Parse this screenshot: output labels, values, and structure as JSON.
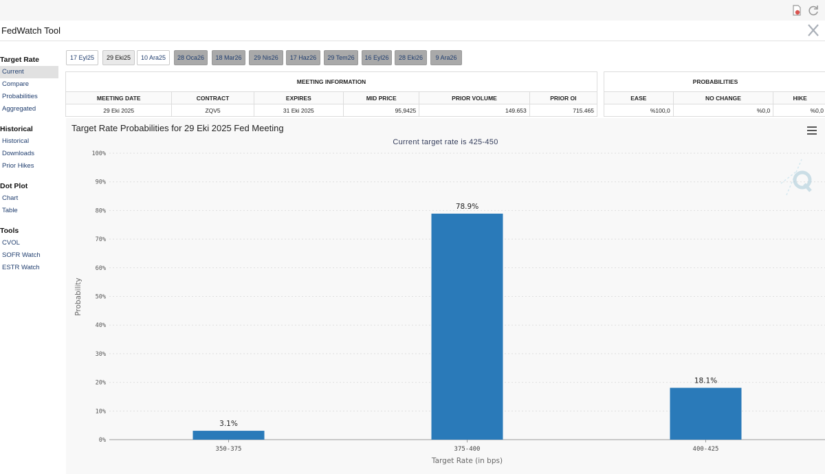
{
  "app": {
    "title": "FedWatch Tool"
  },
  "sidebar": {
    "sections": [
      {
        "heading": "Target Rate",
        "items": [
          "Current",
          "Compare",
          "Probabilities",
          "Aggregated"
        ]
      },
      {
        "heading": "Historical",
        "items": [
          "Historical",
          "Downloads",
          "Prior Hikes"
        ]
      },
      {
        "heading": "Dot Plot",
        "items": [
          "Chart",
          "Table"
        ]
      },
      {
        "heading": "Tools",
        "items": [
          "CVOL",
          "SOFR Watch",
          "ESTR Watch"
        ]
      }
    ]
  },
  "tabs": [
    {
      "label": "17 Eyl25",
      "style": "light"
    },
    {
      "label": "29 Eki25",
      "style": "sel"
    },
    {
      "label": "10 Ara25",
      "style": "light"
    },
    {
      "label": "28 Oca26",
      "style": "dark"
    },
    {
      "label": "18 Mar26",
      "style": "dark"
    },
    {
      "label": "29 Nis26",
      "style": "dark"
    },
    {
      "label": "17 Haz26",
      "style": "dark"
    },
    {
      "label": "29 Tem26",
      "style": "dark"
    },
    {
      "label": "16 Eyl26",
      "style": "dark"
    },
    {
      "label": "28 Eki26",
      "style": "dark"
    },
    {
      "label": "9 Ara26",
      "style": "dark"
    }
  ],
  "meeting": {
    "caption": "MEETING INFORMATION",
    "headers": [
      "MEETING DATE",
      "CONTRACT",
      "EXPIRES",
      "MID PRICE",
      "PRIOR VOLUME",
      "PRIOR OI"
    ],
    "row": [
      "29 Eki 2025",
      "ZQV5",
      "31 Eki 2025",
      "95,9425",
      "149.653",
      "715.465"
    ]
  },
  "probabilities": {
    "caption": "PROBABILITIES",
    "headers": [
      "EASE",
      "NO CHANGE",
      "HIKE"
    ],
    "row": [
      "%100,0",
      "%0,0",
      "%0,0"
    ]
  },
  "chart_data": {
    "type": "bar",
    "title": "Target Rate Probabilities for 29 Eki 2025 Fed Meeting",
    "subtitle": "Current target rate is 425-450",
    "categories": [
      "350-375",
      "375-400",
      "400-425"
    ],
    "values": [
      3.1,
      78.9,
      18.1
    ],
    "data_labels": [
      "3.1%",
      "78.9%",
      "18.1%"
    ],
    "xlabel": "Target Rate (in bps)",
    "ylabel": "Probability",
    "ylim": [
      0,
      100
    ],
    "yticks": [
      "0%",
      "10%",
      "20%",
      "30%",
      "40%",
      "50%",
      "60%",
      "70%",
      "80%",
      "90%",
      "100%"
    ],
    "grid": true,
    "bar_color": "#2a7ab9"
  }
}
